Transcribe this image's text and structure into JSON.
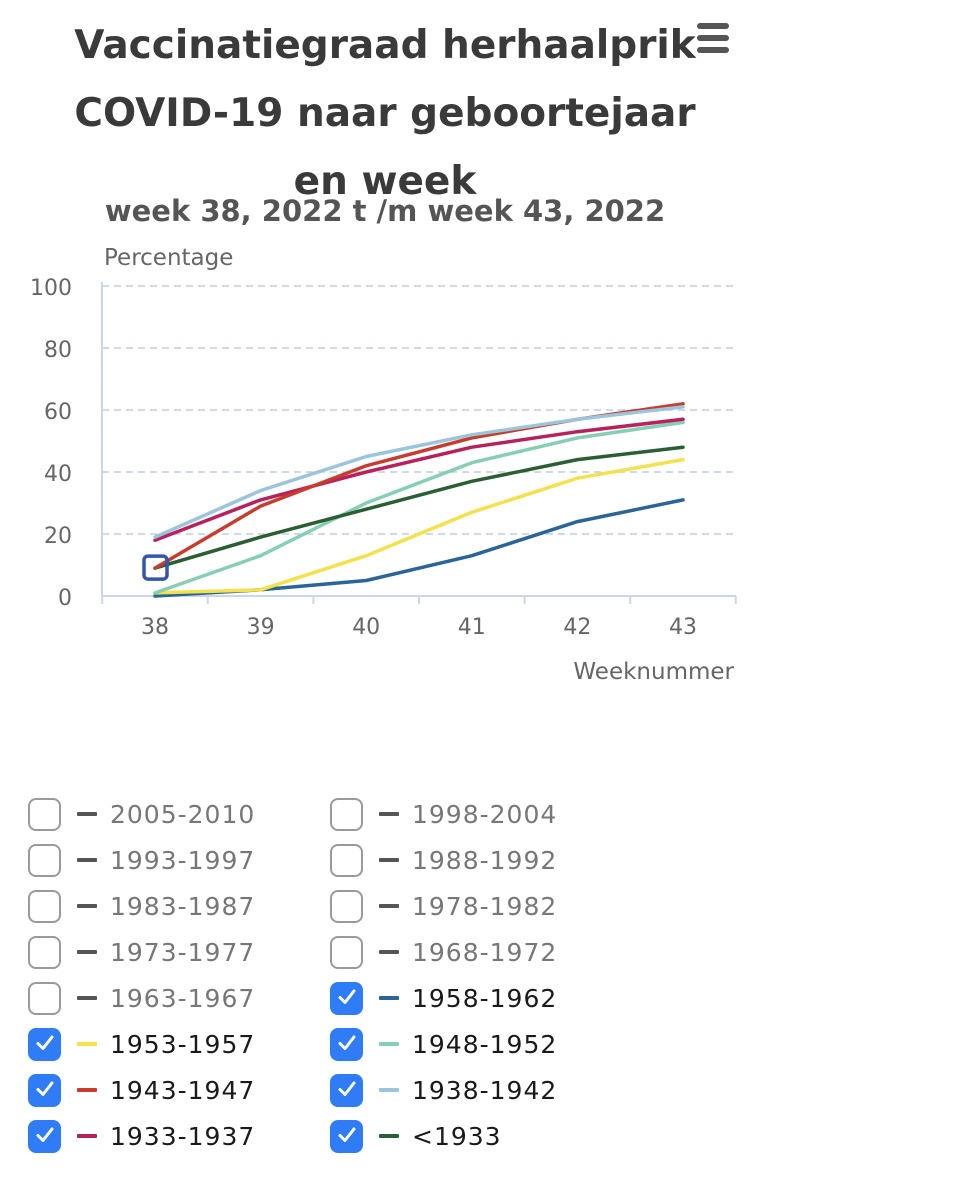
{
  "menu": {
    "icon": "hamburger-menu-icon"
  },
  "chart_data": {
    "type": "line",
    "title": "Vaccinatiegraad herhaalprik COVID-19 naar geboortejaar en week",
    "subtitle": "week 38, 2022 t /m week 43, 2022",
    "ylabel": "Percentage",
    "xlabel": "Weeknummer",
    "x": [
      38,
      39,
      40,
      41,
      42,
      43
    ],
    "ylim": [
      0,
      100
    ],
    "yticks": [
      0,
      20,
      40,
      60,
      80,
      100
    ],
    "grid": true,
    "series": [
      {
        "name": "1958-1962",
        "color": "#2a6599",
        "values": [
          0,
          2,
          5,
          13,
          24,
          31
        ]
      },
      {
        "name": "1953-1957",
        "color": "#f3e14e",
        "values": [
          1,
          2,
          13,
          27,
          38,
          44
        ]
      },
      {
        "name": "1948-1952",
        "color": "#86cfb4",
        "values": [
          1,
          13,
          30,
          43,
          51,
          56
        ]
      },
      {
        "name": "<1933",
        "color": "#2b5e33",
        "values": [
          9,
          19,
          28,
          37,
          44,
          48
        ]
      },
      {
        "name": "1933-1937",
        "color": "#b8225c",
        "values": [
          18,
          31,
          40,
          48,
          53,
          57
        ]
      },
      {
        "name": "1943-1947",
        "color": "#c83c2e",
        "values": [
          9,
          29,
          42,
          51,
          57,
          62
        ]
      },
      {
        "name": "1938-1942",
        "color": "#9ac5dd",
        "values": [
          19,
          34,
          45,
          52,
          57,
          61
        ]
      }
    ]
  },
  "legend": [
    {
      "label": "2005-2010",
      "checked": false,
      "color": "#555555"
    },
    {
      "label": "1998-2004",
      "checked": false,
      "color": "#555555"
    },
    {
      "label": "1993-1997",
      "checked": false,
      "color": "#555555"
    },
    {
      "label": "1988-1992",
      "checked": false,
      "color": "#555555"
    },
    {
      "label": "1983-1987",
      "checked": false,
      "color": "#555555"
    },
    {
      "label": "1978-1982",
      "checked": false,
      "color": "#555555"
    },
    {
      "label": "1973-1977",
      "checked": false,
      "color": "#555555"
    },
    {
      "label": "1968-1972",
      "checked": false,
      "color": "#555555"
    },
    {
      "label": "1963-1967",
      "checked": false,
      "color": "#555555"
    },
    {
      "label": "1958-1962",
      "checked": true,
      "color": "#2a6599"
    },
    {
      "label": "1953-1957",
      "checked": true,
      "color": "#f3e14e"
    },
    {
      "label": "1948-1952",
      "checked": true,
      "color": "#86cfb4"
    },
    {
      "label": "1943-1947",
      "checked": true,
      "color": "#c83c2e"
    },
    {
      "label": "1938-1942",
      "checked": true,
      "color": "#9ac5dd"
    },
    {
      "label": "1933-1937",
      "checked": true,
      "color": "#b8225c"
    },
    {
      "label": "<1933",
      "checked": true,
      "color": "#2b5e33"
    }
  ]
}
